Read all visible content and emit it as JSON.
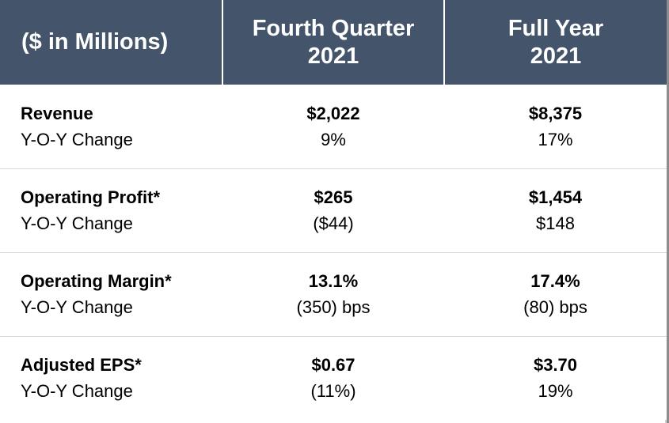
{
  "table": {
    "header": {
      "label_col": "($ in Millions)",
      "col1_line1": "Fourth Quarter",
      "col1_line2": "2021",
      "col2_line1": "Full Year",
      "col2_line2": "2021"
    },
    "rows": [
      {
        "metric": "Revenue",
        "change_label": "Y-O-Y Change",
        "q4_value": "$2,022",
        "q4_change": "9%",
        "fy_value": "$8,375",
        "fy_change": "17%"
      },
      {
        "metric": "Operating Profit*",
        "change_label": "Y-O-Y Change",
        "q4_value": "$265",
        "q4_change": "($44)",
        "fy_value": "$1,454",
        "fy_change": "$148"
      },
      {
        "metric": "Operating Margin*",
        "change_label": "Y-O-Y Change",
        "q4_value": "13.1%",
        "q4_change": "(350) bps",
        "fy_value": "17.4%",
        "fy_change": "(80) bps"
      },
      {
        "metric": "Adjusted EPS*",
        "change_label": "Y-O-Y Change",
        "q4_value": "$0.67",
        "q4_change": "(11%)",
        "fy_value": "$3.70",
        "fy_change": "19%"
      }
    ]
  }
}
